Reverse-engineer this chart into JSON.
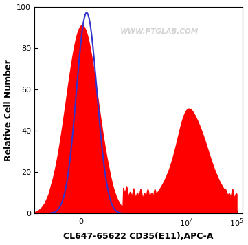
{
  "title": "",
  "xlabel": "CL647-65622 CD35(E11),APC-A",
  "ylabel": "Relative Cell Number",
  "ylim": [
    0,
    100
  ],
  "yticks": [
    0,
    20,
    40,
    60,
    80,
    100
  ],
  "watermark": "WWW.PTGLAB.COM",
  "blue_line_color": "#3333cc",
  "red_fill_color": "#ff0000",
  "background_color": "#ffffff",
  "plot_bg_color": "#ffffff",
  "xlabel_fontsize": 9,
  "ylabel_fontsize": 9,
  "xlabel_fontweight": "bold",
  "ylabel_fontweight": "bold"
}
